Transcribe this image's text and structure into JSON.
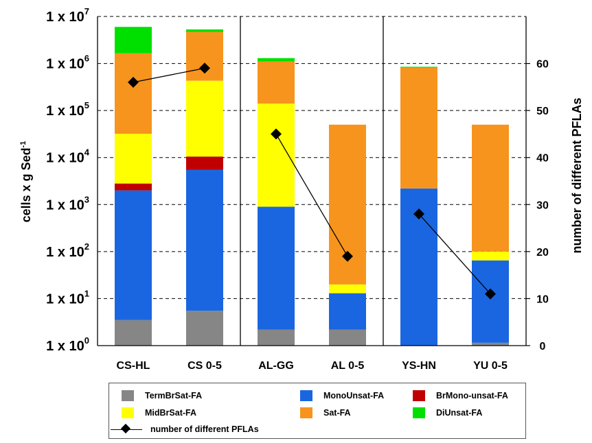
{
  "chart_data": {
    "type": "bar",
    "stacked": true,
    "y_scale": "log",
    "categories": [
      "CS-HL",
      "CS 0-5",
      "AL-GG",
      "AL 0-5",
      "YS-HN",
      "YU 0-5"
    ],
    "ylabel": "cells x g Sed",
    "ylabel_sup": "-1",
    "ylim": [
      1,
      10000000
    ],
    "y_ticks": [
      {
        "base": "1 x 10",
        "exp": "0"
      },
      {
        "base": "1 x 10",
        "exp": "1"
      },
      {
        "base": "1 x 10",
        "exp": "2"
      },
      {
        "base": "1 x 10",
        "exp": "3"
      },
      {
        "base": "1 x 10",
        "exp": "4"
      },
      {
        "base": "1 x 10",
        "exp": "5"
      },
      {
        "base": "1 x 10",
        "exp": "6"
      },
      {
        "base": "1 x 10",
        "exp": "7"
      }
    ],
    "y2label": "number of different PFLAs",
    "y2lim": [
      0,
      70
    ],
    "y2_ticks": [
      "0",
      "10",
      "20",
      "30",
      "40",
      "50",
      "60"
    ],
    "grid": "horizontal dashed at major ticks",
    "group_separators_after": [
      1,
      3
    ],
    "series": [
      {
        "name": "TermBrSat-FA",
        "color": "#868686",
        "cumulative_top": [
          3.5,
          5.5,
          2.2,
          2.2,
          1.0,
          1.15
        ]
      },
      {
        "name": "MonoUnsat-FA",
        "color": "#1a66e0",
        "cumulative_top": [
          2000,
          5500,
          900,
          13,
          2200,
          65
        ]
      },
      {
        "name": "BrMono-unsat-FA",
        "color": "#c00000",
        "cumulative_top": [
          2800,
          10500,
          900,
          13,
          2200,
          65
        ]
      },
      {
        "name": "MidBrSat-FA",
        "color": "#ffff00",
        "cumulative_top": [
          32000,
          430000,
          140000,
          20,
          2200,
          100
        ]
      },
      {
        "name": "Sat-FA",
        "color": "#f7941d",
        "cumulative_top": [
          1650000,
          4700000,
          1100000,
          50000,
          820000,
          50000
        ]
      },
      {
        "name": "DiUnsat-FA",
        "color": "#00e000",
        "cumulative_top": [
          6000000,
          5300000,
          1300000,
          50000,
          850000,
          50000
        ]
      }
    ],
    "line_series": {
      "name": "number of different PFLAs",
      "axis": "right",
      "groups": [
        [
          {
            "category": "CS-HL",
            "value": 56
          },
          {
            "category": "CS 0-5",
            "value": 59
          }
        ],
        [
          {
            "category": "AL-GG",
            "value": 45
          },
          {
            "category": "AL 0-5",
            "value": 19
          }
        ],
        [
          {
            "category": "YS-HN",
            "value": 28
          },
          {
            "category": "YU 0-5",
            "value": 11
          }
        ]
      ]
    },
    "legend_position": "bottom",
    "legend": [
      {
        "label": "TermBrSat-FA",
        "color": "#868686"
      },
      {
        "label": "MonoUnsat-FA",
        "color": "#1a66e0"
      },
      {
        "label": "BrMono-unsat-FA",
        "color": "#c00000"
      },
      {
        "label": "MidBrSat-FA",
        "color": "#ffff00"
      },
      {
        "label": "Sat-FA",
        "color": "#f7941d"
      },
      {
        "label": "DiUnsat-FA",
        "color": "#00e000"
      },
      {
        "label": "number of different PFLAs",
        "marker": "diamond-line"
      }
    ]
  }
}
